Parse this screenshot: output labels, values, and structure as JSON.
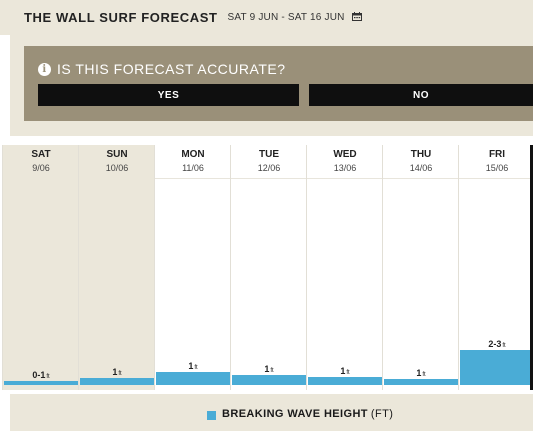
{
  "header": {
    "title": "THE WALL SURF FORECAST",
    "date_range": "SAT 9 JUN - SAT 16 JUN"
  },
  "feedback": {
    "question": "IS THIS FORECAST ACCURATE?",
    "yes_label": "YES",
    "no_label": "NO"
  },
  "days": [
    {
      "name": "SAT",
      "date": "9/06",
      "wave": "0-1",
      "unit": "ft",
      "height_level": 0.5,
      "past": true
    },
    {
      "name": "SUN",
      "date": "10/06",
      "wave": "1",
      "unit": "ft",
      "height_level": 1,
      "past": true
    },
    {
      "name": "MON",
      "date": "11/06",
      "wave": "1",
      "unit": "ft",
      "height_level": 1.8,
      "past": false
    },
    {
      "name": "TUE",
      "date": "12/06",
      "wave": "1",
      "unit": "ft",
      "height_level": 1.4,
      "past": false
    },
    {
      "name": "WED",
      "date": "13/06",
      "wave": "1",
      "unit": "ft",
      "height_level": 1.1,
      "past": false
    },
    {
      "name": "THU",
      "date": "14/06",
      "wave": "1",
      "unit": "ft",
      "height_level": 0.8,
      "past": false
    },
    {
      "name": "FRI",
      "date": "15/06",
      "wave": "2-3",
      "unit": "ft",
      "height_level": 5,
      "past": false
    }
  ],
  "legend": {
    "label": "BREAKING WAVE HEIGHT",
    "unit": "(FT)"
  },
  "colors": {
    "accent_bar": "#4aacd6",
    "panel_bg": "#ebe7da",
    "feedback_bg": "#9a9079"
  }
}
